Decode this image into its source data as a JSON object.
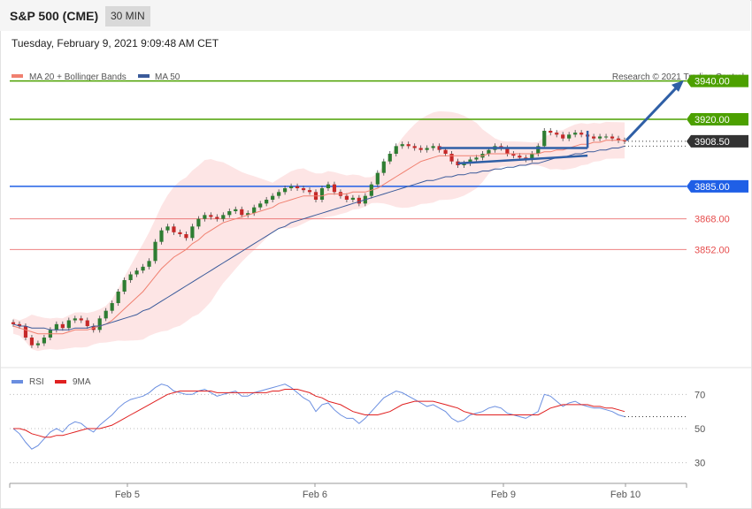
{
  "header": {
    "title": "S&P 500 (CME)",
    "interval": "30 MIN",
    "datetime": "Tuesday, February 9, 2021 9:09:48 AM CET"
  },
  "legend": {
    "ma20": "MA 20 + Bollinger Bands",
    "ma50": "MA 50",
    "credit": "Research © 2021 Trading Central",
    "rsi": "RSI",
    "rsi_ma": "9MA"
  },
  "colors": {
    "green": "#4ca000",
    "blue": "#1f5fe6",
    "red": "#e64d4d",
    "dark": "#333333",
    "ma50": "#3a5a9a",
    "ma20": "#f08070",
    "band": "#fde0e0",
    "up": "#2e7d32",
    "down": "#c62828",
    "arrow": "#2f5fa6",
    "rsi": "#6a8ee0",
    "rsi_ma": "#e02020"
  },
  "chart_data": [
    {
      "type": "candlestick",
      "ylim": [
        3800,
        3950
      ],
      "price_levels": [
        {
          "label": "3940.00",
          "value": 3940,
          "style": "green"
        },
        {
          "label": "3920.00",
          "value": 3920,
          "style": "green"
        },
        {
          "label": "3908.50",
          "value": 3908.5,
          "style": "dark"
        },
        {
          "label": "3885.00",
          "value": 3885,
          "style": "blue"
        },
        {
          "label": "3868.00",
          "value": 3868,
          "style": "red"
        },
        {
          "label": "3852.00",
          "value": 3852,
          "style": "red"
        }
      ],
      "x_ticks": [
        "Feb 5",
        "Feb 6",
        "Feb 9",
        "Feb 10"
      ],
      "series": {
        "close": [
          3813,
          3812,
          3806,
          3802,
          3803,
          3806,
          3810,
          3813,
          3811,
          3815,
          3816,
          3815,
          3812,
          3810,
          3816,
          3820,
          3824,
          3830,
          3836,
          3839,
          3841,
          3843,
          3846,
          3856,
          3862,
          3864,
          3861,
          3860,
          3858,
          3864,
          3868,
          3870,
          3869,
          3868,
          3870,
          3872,
          3873,
          3870,
          3871,
          3874,
          3876,
          3878,
          3880,
          3882,
          3884,
          3885,
          3884,
          3883,
          3882,
          3878,
          3884,
          3886,
          3882,
          3880,
          3878,
          3879,
          3876,
          3880,
          3886,
          3892,
          3898,
          3902,
          3906,
          3907,
          3906,
          3905,
          3904,
          3905,
          3906,
          3904,
          3902,
          3898,
          3896,
          3897,
          3899,
          3900,
          3902,
          3904,
          3906,
          3905,
          3902,
          3901,
          3900,
          3899,
          3902,
          3906,
          3914,
          3913,
          3912,
          3910,
          3912,
          3913,
          3912,
          3911,
          3910,
          3911,
          3911,
          3910,
          3909,
          3908.5
        ],
        "ma20": [
          3812,
          3811,
          3810,
          3809,
          3808,
          3808,
          3808,
          3808,
          3808,
          3809,
          3810,
          3810,
          3810,
          3811,
          3812,
          3813,
          3815,
          3818,
          3821,
          3824,
          3827,
          3830,
          3834,
          3838,
          3842,
          3845,
          3848,
          3850,
          3852,
          3855,
          3857,
          3860,
          3862,
          3864,
          3866,
          3867,
          3868,
          3869,
          3870,
          3871,
          3872,
          3873,
          3874,
          3876,
          3877,
          3878,
          3879,
          3880,
          3880,
          3880,
          3880,
          3881,
          3881,
          3881,
          3881,
          3882,
          3882,
          3882,
          3883,
          3884,
          3886,
          3888,
          3890,
          3892,
          3894,
          3896,
          3898,
          3899,
          3900,
          3901,
          3901,
          3901,
          3901,
          3901,
          3901,
          3901,
          3901,
          3902,
          3902,
          3902,
          3902,
          3902,
          3902,
          3902,
          3902,
          3902,
          3903,
          3903,
          3904,
          3904,
          3905,
          3906,
          3907,
          3907,
          3908,
          3908,
          3909,
          3909,
          3909,
          3909
        ],
        "ma50": [
          3813,
          3812,
          3812,
          3811,
          3811,
          3811,
          3810,
          3810,
          3810,
          3810,
          3811,
          3811,
          3811,
          3812,
          3812,
          3813,
          3814,
          3815,
          3816,
          3817,
          3818,
          3820,
          3821,
          3823,
          3825,
          3827,
          3829,
          3831,
          3833,
          3835,
          3837,
          3839,
          3841,
          3843,
          3845,
          3847,
          3849,
          3851,
          3853,
          3855,
          3857,
          3859,
          3861,
          3863,
          3864,
          3866,
          3867,
          3868,
          3869,
          3870,
          3871,
          3872,
          3873,
          3874,
          3875,
          3876,
          3877,
          3878,
          3879,
          3880,
          3881,
          3882,
          3883,
          3884,
          3885,
          3886,
          3887,
          3888,
          3888,
          3889,
          3890,
          3890,
          3891,
          3891,
          3892,
          3892,
          3893,
          3893,
          3894,
          3894,
          3895,
          3895,
          3896,
          3896,
          3897,
          3897,
          3898,
          3899,
          3900,
          3900,
          3901,
          3902,
          3902,
          3903,
          3903,
          3904,
          3904,
          3905,
          3905,
          3906
        ]
      }
    },
    {
      "type": "line",
      "ylim": [
        20,
        80
      ],
      "y_ticks": [
        70,
        50,
        30
      ],
      "series": [
        {
          "name": "RSI",
          "values": [
            50,
            47,
            42,
            38,
            40,
            44,
            48,
            50,
            48,
            52,
            54,
            53,
            50,
            48,
            52,
            55,
            58,
            62,
            65,
            67,
            68,
            69,
            71,
            74,
            76,
            75,
            72,
            71,
            70,
            70,
            72,
            73,
            71,
            69,
            70,
            71,
            72,
            69,
            69,
            71,
            72,
            73,
            74,
            75,
            76,
            74,
            71,
            68,
            66,
            60,
            64,
            65,
            61,
            58,
            56,
            56,
            53,
            56,
            60,
            64,
            68,
            70,
            72,
            71,
            69,
            67,
            65,
            63,
            64,
            62,
            60,
            56,
            54,
            55,
            58,
            59,
            60,
            62,
            63,
            62,
            59,
            58,
            57,
            56,
            58,
            60,
            70,
            69,
            66,
            63,
            65,
            66,
            64,
            63,
            62,
            62,
            61,
            60,
            58,
            57
          ]
        },
        {
          "name": "9MA",
          "values": [
            50,
            50,
            49,
            47,
            46,
            45,
            45,
            46,
            46,
            47,
            48,
            49,
            50,
            50,
            50,
            51,
            52,
            54,
            56,
            58,
            60,
            62,
            64,
            66,
            68,
            70,
            71,
            72,
            72,
            72,
            72,
            72,
            72,
            71,
            71,
            71,
            71,
            71,
            71,
            71,
            71,
            71,
            72,
            72,
            73,
            73,
            73,
            72,
            71,
            69,
            68,
            66,
            65,
            64,
            62,
            60,
            59,
            58,
            58,
            58,
            59,
            60,
            62,
            64,
            65,
            66,
            66,
            66,
            66,
            65,
            64,
            63,
            62,
            60,
            59,
            58,
            58,
            58,
            58,
            58,
            58,
            58,
            58,
            58,
            58,
            58,
            60,
            62,
            63,
            64,
            64,
            64,
            64,
            64,
            63,
            63,
            62,
            62,
            61,
            60
          ]
        }
      ]
    }
  ]
}
